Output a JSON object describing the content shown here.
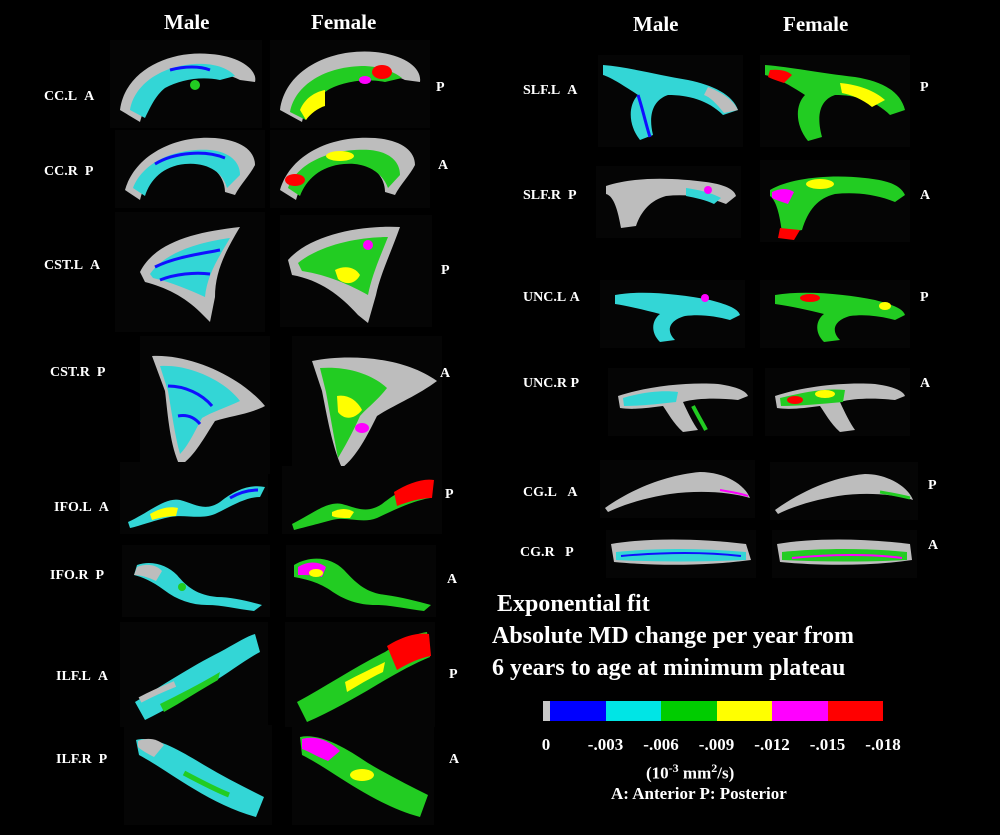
{
  "headers": {
    "left_male": "Male",
    "left_female": "Female",
    "right_male": "Male",
    "right_female": "Female"
  },
  "rows_left": [
    {
      "tract": "CC.L",
      "male_dir": "A",
      "female_dir": "P"
    },
    {
      "tract": "CC.R",
      "male_dir": "P",
      "female_dir": "A"
    },
    {
      "tract": "CST.L",
      "male_dir": "A",
      "female_dir": "P"
    },
    {
      "tract": "CST.R",
      "male_dir": "P",
      "female_dir": "A"
    },
    {
      "tract": "IFO.L",
      "male_dir": "A",
      "female_dir": "P"
    },
    {
      "tract": "IFO.R",
      "male_dir": "P",
      "female_dir": "A"
    },
    {
      "tract": "ILF.L",
      "male_dir": "A",
      "female_dir": "P"
    },
    {
      "tract": "ILF.R",
      "male_dir": "P",
      "female_dir": "A"
    }
  ],
  "rows_right": [
    {
      "tract": "SLF.L",
      "male_dir": "A",
      "female_dir": "P"
    },
    {
      "tract": "SLF.R",
      "male_dir": "P",
      "female_dir": "A"
    },
    {
      "tract": "UNC.L",
      "male_dir": "A",
      "female_dir": "P"
    },
    {
      "tract": "UNC.R",
      "male_dir": "P",
      "female_dir": "A"
    },
    {
      "tract": "CG.L",
      "male_dir": "A",
      "female_dir": "P"
    },
    {
      "tract": "CG.R",
      "male_dir": "P",
      "female_dir": "A"
    }
  ],
  "legend": {
    "title_line1": "Exponential fit",
    "title_line2": "Absolute MD change per year from",
    "title_line3": "6 years to age at minimum plateau",
    "ticks": [
      "0",
      "-.003",
      "-.006",
      "-.009",
      "-.012",
      "-.015",
      "-.018"
    ],
    "units_base": "(10",
    "units_exp": "-3",
    "units_mid": " mm",
    "units_exp2": "2",
    "units_end": "/s)",
    "orientation_key": "A: Anterior  P: Posterior",
    "colors": [
      "#c8c8c8",
      "#0000ff",
      "#00e5e5",
      "#00cc00",
      "#ffff00",
      "#ff00ff",
      "#ff0000"
    ]
  }
}
